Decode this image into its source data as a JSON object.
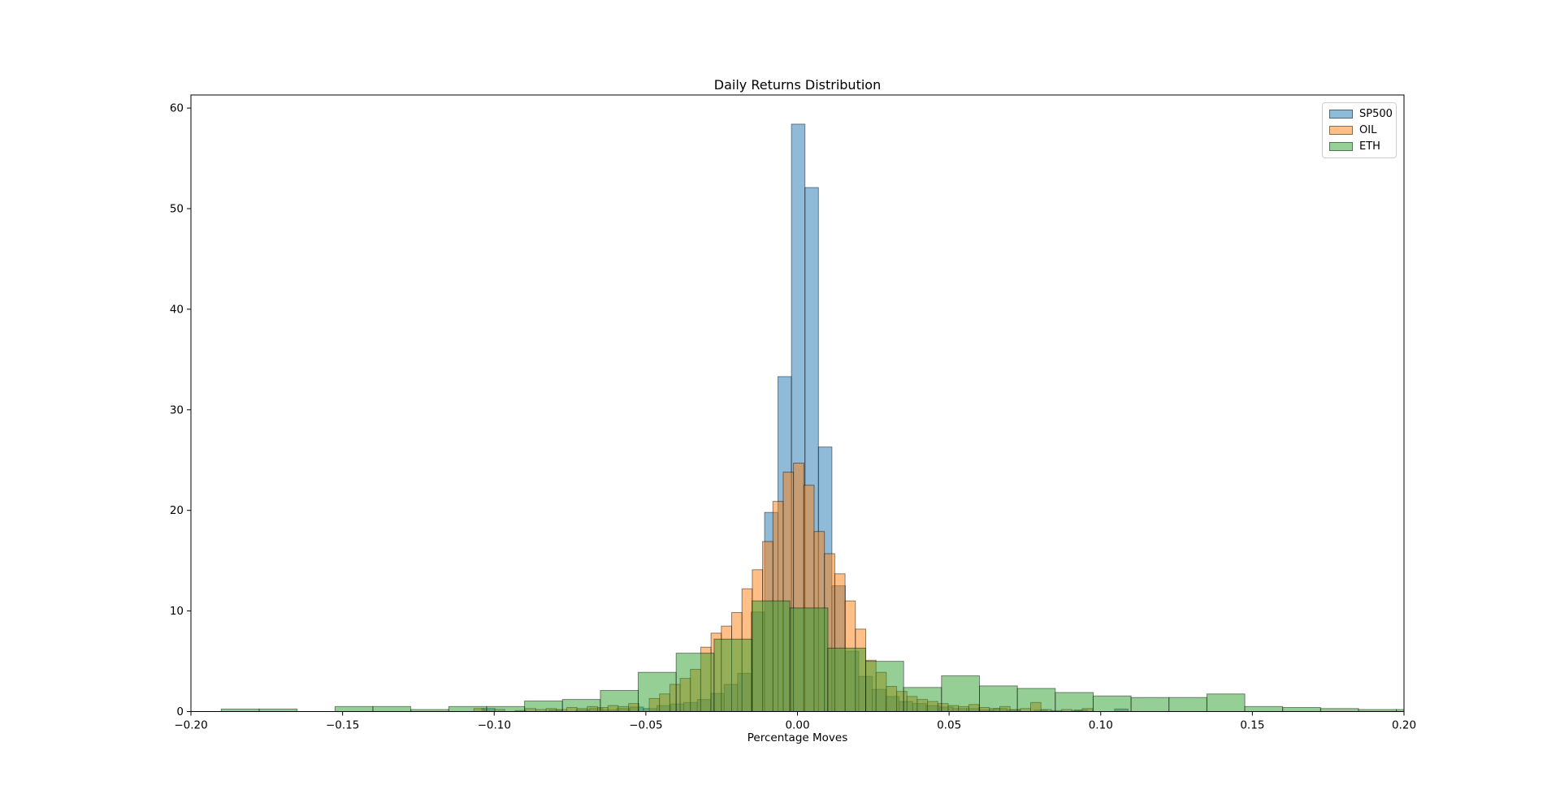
{
  "figure": {
    "title": "Daily Returns Distribution",
    "xlabel": "Percentage Moves"
  },
  "chart_data": {
    "type": "histogram",
    "title": "Daily Returns Distribution",
    "xlabel": "Percentage Moves",
    "ylabel": "",
    "xlim": [
      -0.2,
      0.2
    ],
    "ylim": [
      0,
      61.3
    ],
    "grid": false,
    "legend_position": "upper right",
    "bar_alpha": 0.5,
    "bar_edge_color": "#000000",
    "x_ticks": [
      "−0.20",
      "−0.15",
      "−0.10",
      "−0.05",
      "0.00",
      "0.05",
      "0.10",
      "0.15",
      "0.20"
    ],
    "x_tick_values": [
      -0.2,
      -0.15,
      -0.1,
      -0.05,
      0.0,
      0.05,
      0.1,
      0.15,
      0.2
    ],
    "y_ticks": [
      "0",
      "10",
      "20",
      "30",
      "40",
      "50",
      "60"
    ],
    "y_tick_values": [
      0,
      10,
      20,
      30,
      40,
      50,
      60
    ],
    "series": [
      {
        "name": "SP500",
        "color": "#1f77b4",
        "bin_start": -0.1041,
        "bin_width": 0.00444,
        "densities": [
          0.3,
          0,
          0,
          0,
          0,
          0.15,
          0,
          0.15,
          0.3,
          0.15,
          0.3,
          0.45,
          0.3,
          0.6,
          0.75,
          0.9,
          1.2,
          1.8,
          2.7,
          3.8,
          9.9,
          19.8,
          33.3,
          58.4,
          52.1,
          26.3,
          12.5,
          6.0,
          3.5,
          2.2,
          1.5,
          1.0,
          0.8,
          0.6,
          0.45,
          0.3,
          0.3,
          0.15,
          0.3,
          0.15,
          0,
          0.15,
          0,
          0,
          0.15,
          0,
          0,
          0.25
        ]
      },
      {
        "name": "OIL",
        "color": "#ff7f0e",
        "bin_start": -0.1067,
        "bin_width": 0.0034,
        "densities": [
          0.3,
          0,
          0.2,
          0,
          0.1,
          0.3,
          0.2,
          0.3,
          0.2,
          0.4,
          0.3,
          0.5,
          0.4,
          0.6,
          0.5,
          0.8,
          0,
          1.3,
          1.75,
          2.7,
          3.3,
          4.2,
          6.4,
          7.8,
          8.5,
          9.85,
          12.2,
          14.1,
          16.9,
          20.9,
          23.8,
          24.7,
          22.5,
          17.9,
          15.7,
          13.7,
          11.0,
          8.2,
          5.1,
          3.9,
          2.5,
          2.0,
          1.5,
          1.2,
          1.0,
          0.8,
          0.6,
          0.5,
          0.7,
          0.4,
          0.3,
          0.5,
          0.2,
          0.3,
          0.9,
          0.2,
          0.1,
          0.2,
          0.1,
          0.3
        ]
      },
      {
        "name": "ETH",
        "color": "#2ca02c",
        "bin_start": -0.19,
        "bin_width": 0.0125,
        "densities": [
          0.25,
          0.25,
          0,
          0.5,
          0.5,
          0.2,
          0.5,
          0.5,
          1.05,
          1.2,
          2.1,
          3.9,
          5.8,
          7.2,
          11.0,
          10.3,
          6.3,
          5.0,
          2.4,
          3.55,
          2.55,
          2.3,
          1.9,
          1.55,
          1.4,
          1.4,
          1.75,
          0.5,
          0.4,
          0.3,
          0.2,
          0.2
        ]
      }
    ]
  }
}
